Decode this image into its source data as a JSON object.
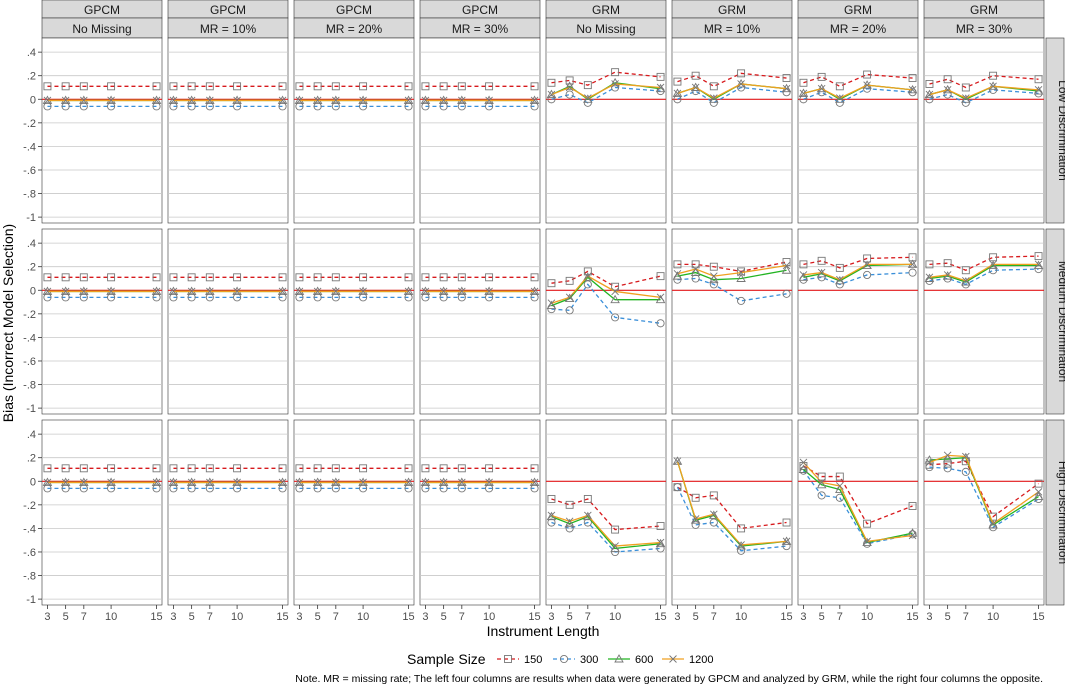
{
  "chart_data": {
    "type": "line",
    "xlabel": "Instrument Length",
    "ylabel": "Bias (Incorrect Model Selection)",
    "x": [
      3,
      5,
      7,
      10,
      15
    ],
    "x_ticks": [
      "3",
      "5",
      "7",
      "10",
      "15"
    ],
    "y_ticks": [
      ".4",
      ".2",
      "0",
      "-.2",
      "-.4",
      "-.6",
      "-.8",
      "-1"
    ],
    "ylim": [
      -1.05,
      0.52
    ],
    "reference_line": 0,
    "reference_color": "#e41a1c",
    "column_headers_top": [
      "GPCM",
      "GPCM",
      "GPCM",
      "GPCM",
      "GRM",
      "GRM",
      "GRM",
      "GRM"
    ],
    "column_headers_bottom": [
      "No Missing",
      "MR = 10%",
      "MR = 20%",
      "MR = 30%",
      "No Missing",
      "MR = 10%",
      "MR = 20%",
      "MR = 30%"
    ],
    "row_headers": [
      "Low Discrimination",
      "Medium Discrimination",
      "High Discrimination"
    ],
    "legend": {
      "title": "Sample Size",
      "position": "bottom",
      "items": [
        {
          "name": "150",
          "color": "#d7191c",
          "dash": "dashed",
          "marker": "square"
        },
        {
          "name": "300",
          "color": "#3a8fd9",
          "dash": "dashed",
          "marker": "circle"
        },
        {
          "name": "600",
          "color": "#22b422",
          "dash": "solid",
          "marker": "triangle"
        },
        {
          "name": "1200",
          "color": "#f0a020",
          "dash": "solid",
          "marker": "x"
        }
      ]
    },
    "series_styles": [
      {
        "color": "#d7191c",
        "dash": "dashed",
        "marker": "square"
      },
      {
        "color": "#3a8fd9",
        "dash": "dashed",
        "marker": "circle"
      },
      {
        "color": "#22b422",
        "dash": "solid",
        "marker": "triangle"
      },
      {
        "color": "#f0a020",
        "dash": "solid",
        "marker": "x"
      }
    ],
    "panels": [
      [
        [
          [
            0.11,
            0.11,
            0.11,
            0.11,
            0.11
          ],
          [
            -0.06,
            -0.06,
            -0.06,
            -0.06,
            -0.06
          ],
          [
            -0.01,
            -0.01,
            -0.01,
            -0.01,
            -0.01
          ],
          [
            -0.01,
            -0.01,
            -0.01,
            -0.01,
            -0.01
          ]
        ],
        [
          [
            0.11,
            0.11,
            0.11,
            0.11,
            0.11
          ],
          [
            -0.06,
            -0.06,
            -0.06,
            -0.06,
            -0.06
          ],
          [
            -0.01,
            -0.01,
            -0.01,
            -0.01,
            -0.01
          ],
          [
            -0.01,
            -0.01,
            -0.01,
            -0.01,
            -0.01
          ]
        ],
        [
          [
            0.11,
            0.11,
            0.11,
            0.11,
            0.11
          ],
          [
            -0.06,
            -0.06,
            -0.06,
            -0.06,
            -0.06
          ],
          [
            -0.01,
            -0.01,
            -0.01,
            -0.01,
            -0.01
          ],
          [
            -0.01,
            -0.01,
            -0.01,
            -0.01,
            -0.01
          ]
        ],
        [
          [
            0.11,
            0.11,
            0.11,
            0.11,
            0.11
          ],
          [
            -0.06,
            -0.06,
            -0.06,
            -0.06,
            -0.06
          ],
          [
            -0.01,
            -0.01,
            -0.01,
            -0.01,
            -0.01
          ],
          [
            -0.01,
            -0.01,
            -0.01,
            -0.01,
            -0.01
          ]
        ],
        [
          [
            0.14,
            0.16,
            0.12,
            0.23,
            0.19
          ],
          [
            0.0,
            0.04,
            -0.03,
            0.1,
            0.07
          ],
          [
            0.04,
            0.11,
            0.0,
            0.14,
            0.09
          ],
          [
            0.04,
            0.1,
            0.01,
            0.13,
            0.1
          ]
        ],
        [
          [
            0.15,
            0.2,
            0.11,
            0.22,
            0.18
          ],
          [
            0.0,
            0.07,
            -0.03,
            0.1,
            0.06
          ],
          [
            0.05,
            0.1,
            0.0,
            0.13,
            0.09
          ],
          [
            0.05,
            0.1,
            0.01,
            0.13,
            0.09
          ]
        ],
        [
          [
            0.14,
            0.19,
            0.11,
            0.21,
            0.18
          ],
          [
            0.0,
            0.06,
            -0.03,
            0.09,
            0.06
          ],
          [
            0.05,
            0.09,
            0.0,
            0.12,
            0.08
          ],
          [
            0.05,
            0.09,
            0.01,
            0.12,
            0.08
          ]
        ],
        [
          [
            0.13,
            0.17,
            0.1,
            0.2,
            0.17
          ],
          [
            0.0,
            0.04,
            -0.03,
            0.08,
            0.05
          ],
          [
            0.04,
            0.08,
            0.0,
            0.11,
            0.07
          ],
          [
            0.04,
            0.08,
            0.01,
            0.11,
            0.08
          ]
        ]
      ],
      [
        [
          [
            0.11,
            0.11,
            0.11,
            0.11,
            0.11
          ],
          [
            -0.06,
            -0.06,
            -0.06,
            -0.06,
            -0.06
          ],
          [
            -0.01,
            -0.01,
            -0.01,
            -0.01,
            -0.01
          ],
          [
            -0.01,
            -0.01,
            -0.01,
            -0.01,
            -0.01
          ]
        ],
        [
          [
            0.11,
            0.11,
            0.11,
            0.11,
            0.11
          ],
          [
            -0.06,
            -0.06,
            -0.06,
            -0.06,
            -0.06
          ],
          [
            -0.01,
            -0.01,
            -0.01,
            -0.01,
            -0.01
          ],
          [
            -0.01,
            -0.01,
            -0.01,
            -0.01,
            -0.01
          ]
        ],
        [
          [
            0.11,
            0.11,
            0.11,
            0.11,
            0.11
          ],
          [
            -0.06,
            -0.06,
            -0.06,
            -0.06,
            -0.06
          ],
          [
            -0.01,
            -0.01,
            -0.01,
            -0.01,
            -0.01
          ],
          [
            -0.01,
            -0.01,
            -0.01,
            -0.01,
            -0.01
          ]
        ],
        [
          [
            0.11,
            0.11,
            0.11,
            0.11,
            0.11
          ],
          [
            -0.06,
            -0.06,
            -0.06,
            -0.06,
            -0.06
          ],
          [
            -0.01,
            -0.01,
            -0.01,
            -0.01,
            -0.01
          ],
          [
            -0.01,
            -0.01,
            -0.01,
            -0.01,
            -0.01
          ]
        ],
        [
          [
            0.06,
            0.08,
            0.16,
            0.03,
            0.12
          ],
          [
            -0.16,
            -0.17,
            0.05,
            -0.23,
            -0.28
          ],
          [
            -0.13,
            -0.07,
            0.11,
            -0.08,
            -0.08
          ],
          [
            -0.11,
            -0.06,
            0.12,
            -0.01,
            -0.06
          ]
        ],
        [
          [
            0.22,
            0.22,
            0.2,
            0.16,
            0.24
          ],
          [
            0.09,
            0.1,
            0.05,
            -0.09,
            -0.03
          ],
          [
            0.12,
            0.15,
            0.09,
            0.1,
            0.17
          ],
          [
            0.14,
            0.18,
            0.12,
            0.15,
            0.21
          ]
        ],
        [
          [
            0.22,
            0.25,
            0.19,
            0.27,
            0.28
          ],
          [
            0.09,
            0.11,
            0.05,
            0.13,
            0.15
          ],
          [
            0.11,
            0.14,
            0.08,
            0.21,
            0.22
          ],
          [
            0.13,
            0.15,
            0.09,
            0.22,
            0.22
          ]
        ],
        [
          [
            0.22,
            0.23,
            0.17,
            0.28,
            0.29
          ],
          [
            0.08,
            0.1,
            0.05,
            0.17,
            0.18
          ],
          [
            0.1,
            0.12,
            0.07,
            0.21,
            0.21
          ],
          [
            0.11,
            0.13,
            0.08,
            0.22,
            0.22
          ]
        ]
      ],
      [
        [
          [
            0.11,
            0.11,
            0.11,
            0.11,
            0.11
          ],
          [
            -0.06,
            -0.06,
            -0.06,
            -0.06,
            -0.06
          ],
          [
            -0.01,
            -0.01,
            -0.01,
            -0.01,
            -0.01
          ],
          [
            -0.01,
            -0.01,
            -0.01,
            -0.01,
            -0.01
          ]
        ],
        [
          [
            0.11,
            0.11,
            0.11,
            0.11,
            0.11
          ],
          [
            -0.06,
            -0.06,
            -0.06,
            -0.06,
            -0.06
          ],
          [
            -0.01,
            -0.01,
            -0.01,
            -0.01,
            -0.01
          ],
          [
            -0.01,
            -0.01,
            -0.01,
            -0.01,
            -0.01
          ]
        ],
        [
          [
            0.11,
            0.11,
            0.11,
            0.11,
            0.11
          ],
          [
            -0.06,
            -0.06,
            -0.06,
            -0.06,
            -0.06
          ],
          [
            -0.01,
            -0.01,
            -0.01,
            -0.01,
            -0.01
          ],
          [
            -0.01,
            -0.01,
            -0.01,
            -0.01,
            -0.01
          ]
        ],
        [
          [
            0.11,
            0.11,
            0.11,
            0.11,
            0.11
          ],
          [
            -0.06,
            -0.06,
            -0.06,
            -0.06,
            -0.06
          ],
          [
            -0.01,
            -0.01,
            -0.01,
            -0.01,
            -0.01
          ],
          [
            -0.01,
            -0.01,
            -0.01,
            -0.01,
            -0.01
          ]
        ],
        [
          [
            -0.15,
            -0.2,
            -0.15,
            -0.41,
            -0.38
          ],
          [
            -0.35,
            -0.4,
            -0.35,
            -0.6,
            -0.57
          ],
          [
            -0.3,
            -0.36,
            -0.3,
            -0.57,
            -0.53
          ],
          [
            -0.29,
            -0.34,
            -0.29,
            -0.55,
            -0.52
          ]
        ],
        [
          [
            -0.05,
            -0.14,
            -0.12,
            -0.4,
            -0.35
          ],
          [
            -0.05,
            -0.37,
            -0.35,
            -0.59,
            -0.55
          ],
          [
            0.17,
            -0.33,
            -0.29,
            -0.55,
            -0.51
          ],
          [
            0.17,
            -0.32,
            -0.28,
            -0.54,
            -0.51
          ]
        ],
        [
          [
            0.13,
            0.04,
            0.04,
            -0.36,
            -0.21
          ],
          [
            0.09,
            -0.12,
            -0.14,
            -0.53,
            -0.45
          ],
          [
            0.1,
            -0.03,
            -0.07,
            -0.52,
            -0.44
          ],
          [
            0.16,
            -0.01,
            -0.04,
            -0.51,
            -0.46
          ]
        ],
        [
          [
            0.14,
            0.15,
            0.17,
            -0.3,
            -0.02
          ],
          [
            0.12,
            0.11,
            0.08,
            -0.39,
            -0.15
          ],
          [
            0.18,
            0.19,
            0.2,
            -0.37,
            -0.13
          ],
          [
            0.16,
            0.22,
            0.21,
            -0.36,
            -0.09
          ]
        ]
      ]
    ],
    "note": "Note. MR = missing rate; The left four columns are results when data were generated by GPCM and analyzed by GRM, while the right four columns the opposite."
  }
}
